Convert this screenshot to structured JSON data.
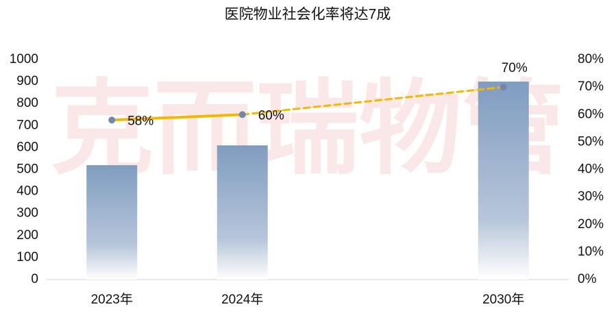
{
  "chart_data": {
    "type": "bar-line",
    "title": "医院物业社会化率将达7成",
    "watermark": "克而瑞物管",
    "categories": [
      "2023年",
      "2024年",
      null,
      "2030年"
    ],
    "series": [
      {
        "type": "bar",
        "color": "#7f9cc0",
        "values": [
          520,
          610,
          null,
          900
        ]
      },
      {
        "type": "line",
        "axis": "y2",
        "color": "#f5b800",
        "marker_color": "#7088b0",
        "values": [
          58,
          60,
          null,
          70
        ],
        "value_labels": [
          "58%",
          "60%",
          null,
          "70%"
        ]
      }
    ],
    "ylim": [
      0,
      1000
    ],
    "yticks": [
      0,
      100,
      200,
      300,
      400,
      500,
      600,
      700,
      800,
      900,
      1000
    ],
    "y2lim": [
      0,
      80
    ],
    "y2ticks": [
      {
        "value": 0,
        "label": "0%"
      },
      {
        "value": 10,
        "label": "10%"
      },
      {
        "value": 20,
        "label": "20%"
      },
      {
        "value": 30,
        "label": "30%"
      },
      {
        "value": 40,
        "label": "40%"
      },
      {
        "value": 50,
        "label": "50%"
      },
      {
        "value": 60,
        "label": "60%"
      },
      {
        "value": 70,
        "label": "70%"
      },
      {
        "value": 80,
        "label": "80%"
      }
    ],
    "grid": false
  }
}
